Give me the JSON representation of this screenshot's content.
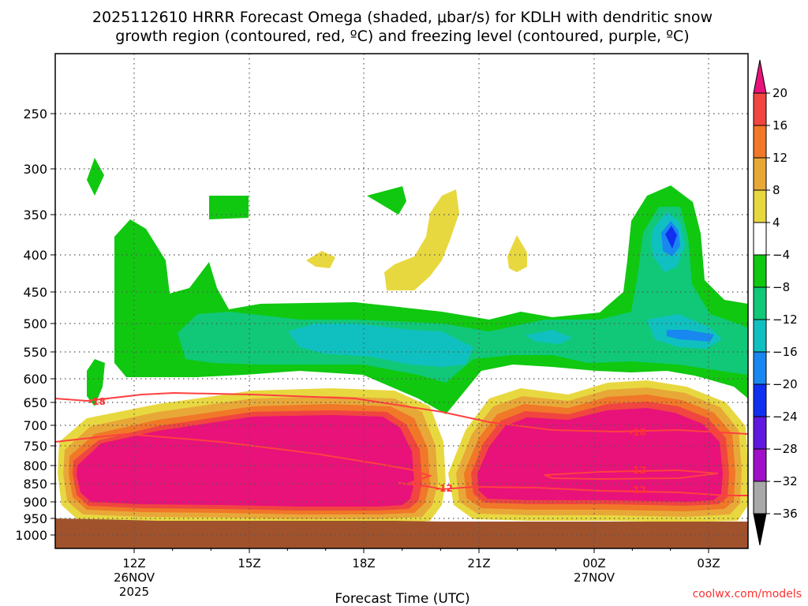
{
  "chart_data": {
    "type": "heatmap",
    "title_lines": [
      "2025112610 HRRR Forecast Omega (shaded, μbar/s) for KDLH with dendritic snow",
      "growth region (contoured, red, ºC) and freezing level (contoured, purple, ºC)"
    ],
    "xlabel": "Forecast Time (UTC)",
    "x_ticks": [
      {
        "label": "12Z",
        "sub1": "26NOV",
        "sub2": "2025"
      },
      {
        "label": "15Z",
        "sub1": "",
        "sub2": ""
      },
      {
        "label": "18Z",
        "sub1": "",
        "sub2": ""
      },
      {
        "label": "21Z",
        "sub1": "",
        "sub2": ""
      },
      {
        "label": "00Z",
        "sub1": "27NOV",
        "sub2": ""
      },
      {
        "label": "03Z",
        "sub1": "",
        "sub2": ""
      }
    ],
    "y_ticks": [
      250,
      300,
      350,
      400,
      450,
      500,
      550,
      600,
      650,
      700,
      750,
      800,
      850,
      900,
      950,
      1000
    ],
    "y_range": [
      200,
      1000
    ],
    "x_range_hours": [
      10.0,
      4.0
    ],
    "grid": true,
    "colorbar": {
      "ticks": [
        "20",
        "16",
        "12",
        "8",
        "4",
        "−4",
        "−8",
        "−12",
        "−16",
        "−20",
        "−24",
        "−28",
        "−32",
        "−36"
      ],
      "colors": [
        "#e8127a",
        "#f04540",
        "#f07828",
        "#e8a838",
        "#e8d840",
        "#ffffff",
        "#10c810",
        "#10c878",
        "#10c0c0",
        "#1888f0",
        "#1030f0",
        "#6018e0",
        "#a010c8",
        "#a8a8a8",
        "#000000"
      ]
    },
    "contour_labels": [
      "-18",
      "-18",
      "-12",
      "-12",
      "-12"
    ],
    "credit": "coolwx.com/models"
  }
}
